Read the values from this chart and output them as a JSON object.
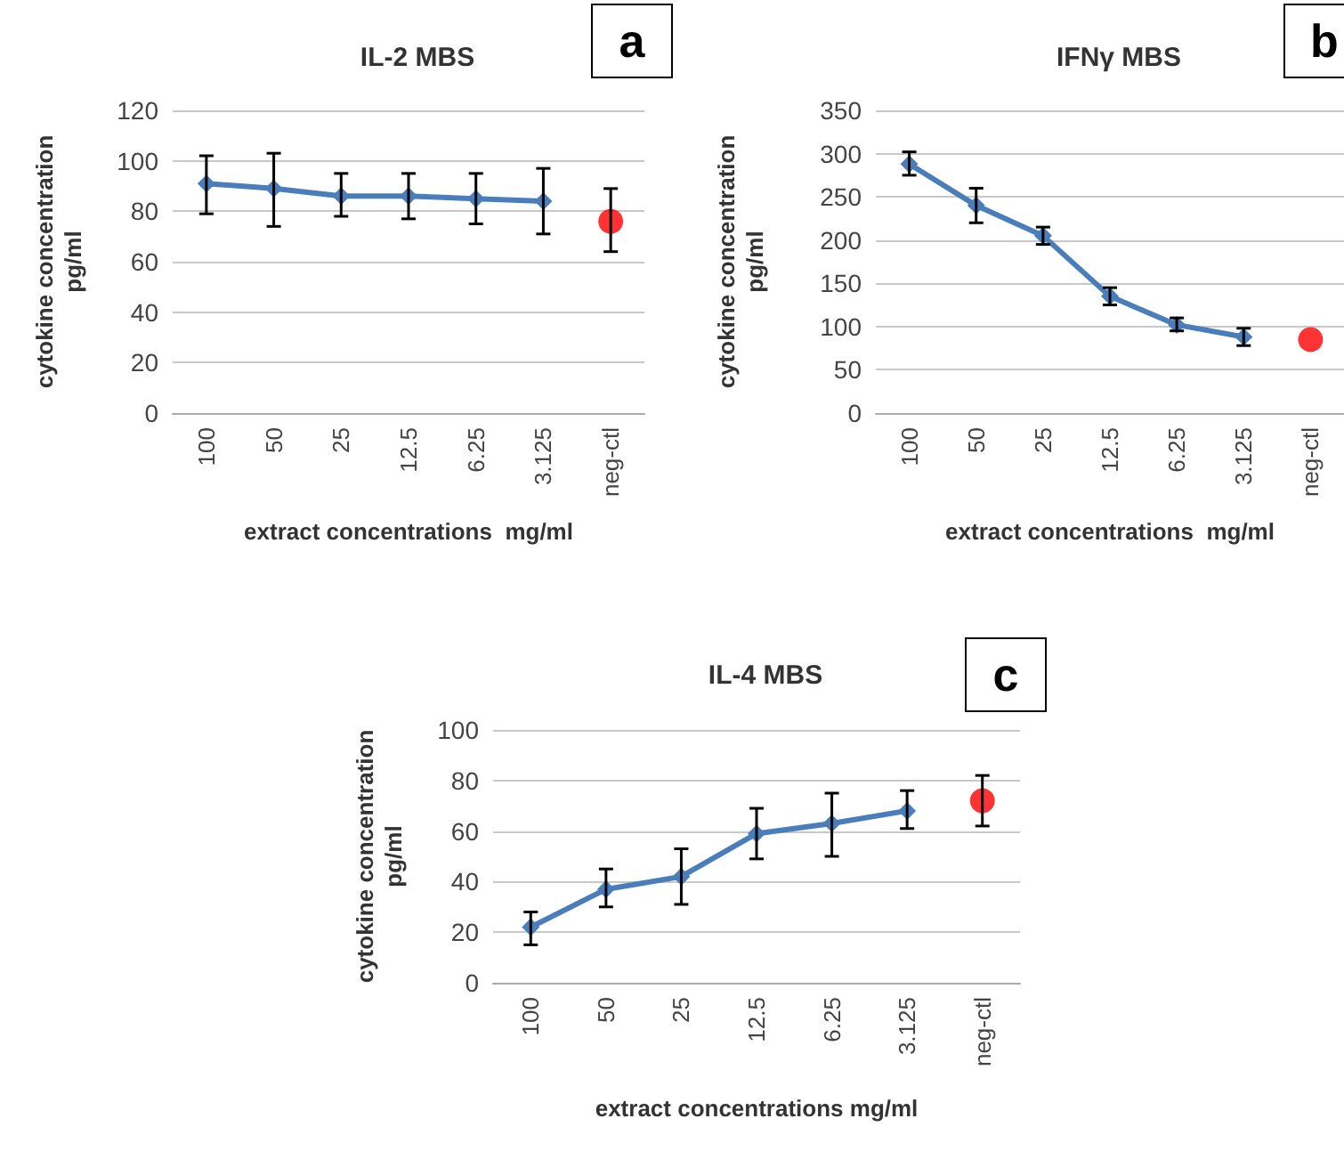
{
  "chart_data": [
    {
      "type": "line",
      "title": "IL-2 MBS",
      "xlabel": "extract concentrations  mg/ml",
      "ylabel": "cytokine concentration\npg/ml",
      "annotations": [
        "a"
      ],
      "categories": [
        "100",
        "50",
        "25",
        "12.5",
        "6.25",
        "3.125",
        "neg-ctl"
      ],
      "series": [
        {
          "color": "#4a7ebb",
          "marker": "diamond",
          "values": [
            91,
            89,
            86,
            86,
            85,
            84,
            null
          ],
          "errors": [
            [
              79,
              102
            ],
            [
              74,
              103
            ],
            [
              78,
              95
            ],
            [
              77,
              95
            ],
            [
              75,
              95
            ],
            [
              71,
              97
            ],
            null
          ]
        },
        {
          "type": "scatter",
          "color": "#ff0000",
          "marker": "circle",
          "x": [
            "neg-ctl"
          ],
          "values": [
            76
          ],
          "errors": [
            [
              64,
              89
            ]
          ]
        }
      ],
      "ylim": [
        0,
        120
      ],
      "yticks": [
        0,
        20,
        40,
        60,
        80,
        100,
        120
      ],
      "grid": "y"
    },
    {
      "type": "line",
      "title": "IFNγ MBS",
      "xlabel": "extract concentrations  mg/ml",
      "ylabel": "cytokine concentration\npg/ml",
      "annotations": [
        "b"
      ],
      "categories": [
        "100",
        "50",
        "25",
        "12.5",
        "6.25",
        "3.125",
        "neg-ctl"
      ],
      "series": [
        {
          "color": "#4a7ebb",
          "marker": "diamond",
          "values": [
            288,
            240,
            205,
            135,
            102,
            88,
            null
          ],
          "errors": [
            [
              275,
              302
            ],
            [
              220,
              260
            ],
            [
              195,
              215
            ],
            [
              125,
              145
            ],
            [
              95,
              110
            ],
            [
              78,
              98
            ],
            null
          ]
        },
        {
          "type": "scatter",
          "color": "#ff0000",
          "marker": "circle",
          "x": [
            "neg-ctl"
          ],
          "values": [
            85
          ]
        }
      ],
      "ylim": [
        0,
        350
      ],
      "yticks": [
        0,
        50,
        100,
        150,
        200,
        250,
        300,
        350
      ],
      "grid": "y"
    },
    {
      "type": "line",
      "title": "IL-4 MBS",
      "xlabel": "extract concentrations mg/ml",
      "ylabel": "cytokine concentration\npg/ml",
      "annotations": [
        "c"
      ],
      "categories": [
        "100",
        "50",
        "25",
        "12.5",
        "6.25",
        "3.125",
        "neg-ctl"
      ],
      "series": [
        {
          "color": "#4a7ebb",
          "marker": "diamond",
          "values": [
            22,
            37,
            42,
            59,
            63,
            68,
            null
          ],
          "errors": [
            [
              15,
              28
            ],
            [
              30,
              45
            ],
            [
              31,
              53
            ],
            [
              49,
              69
            ],
            [
              50,
              75
            ],
            [
              61,
              76
            ],
            null
          ]
        },
        {
          "type": "scatter",
          "color": "#ff0000",
          "marker": "circle",
          "x": [
            "neg-ctl"
          ],
          "values": [
            72
          ],
          "errors": [
            [
              62,
              82
            ]
          ]
        }
      ],
      "ylim": [
        0,
        100
      ],
      "yticks": [
        0,
        20,
        40,
        60,
        80,
        100
      ],
      "grid": "y"
    }
  ]
}
